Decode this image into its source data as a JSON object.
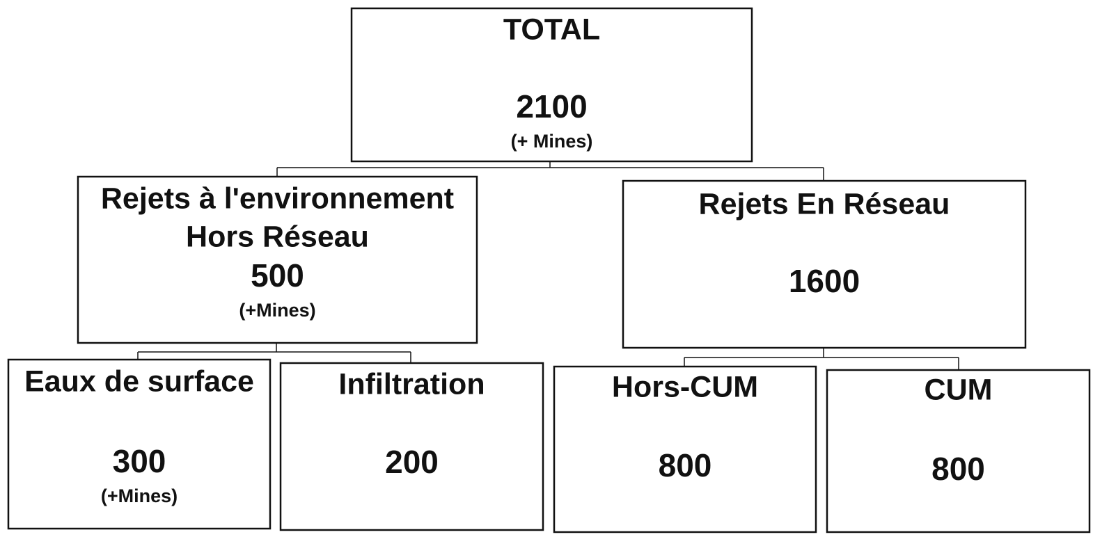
{
  "nodes": [
    {
      "label": [
        "TOTAL"
      ],
      "value": 2100,
      "note": "(+ Mines)"
    },
    {
      "label": [
        "Rejets à l'environnement",
        "Hors Réseau"
      ],
      "value": 500,
      "note": "(+Mines)"
    },
    {
      "label": [
        "Rejets En Réseau"
      ],
      "value": 1600
    },
    {
      "label": [
        "Eaux de surface"
      ],
      "value": 300,
      "note": "(+Mines)"
    },
    {
      "label": [
        "Infiltration"
      ],
      "value": 200
    },
    {
      "label": [
        "Hors-CUM"
      ],
      "value": 800
    },
    {
      "label": [
        "CUM"
      ],
      "value": 800
    }
  ]
}
